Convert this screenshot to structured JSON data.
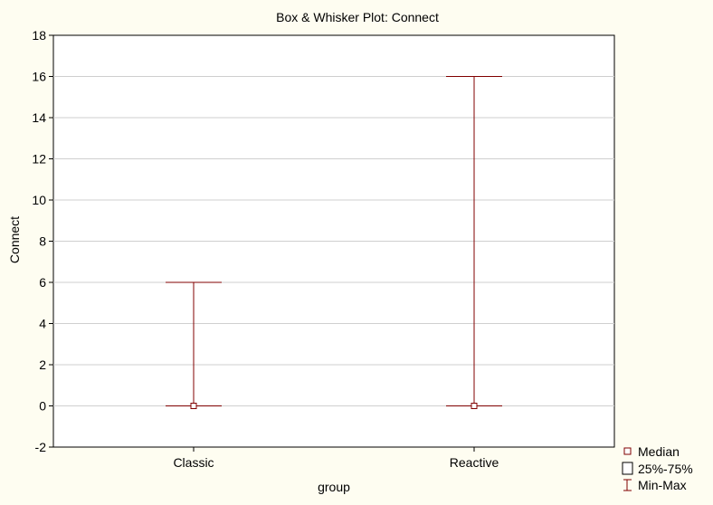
{
  "chart_data": {
    "type": "box",
    "title": "Box & Whisker Plot:  Connect",
    "xlabel": "group",
    "ylabel": "Connect",
    "ylim": [
      -2,
      18
    ],
    "yticks": [
      -2,
      0,
      2,
      4,
      6,
      8,
      10,
      12,
      14,
      16,
      18
    ],
    "grid": true,
    "legend_position": "bottom-right, outside plot",
    "categories": [
      "Classic",
      "Reactive"
    ],
    "series": [
      {
        "category": "Classic",
        "median": 0,
        "q1": 0,
        "q3": 0,
        "min": 0,
        "max": 6
      },
      {
        "category": "Reactive",
        "median": 0,
        "q1": 0,
        "q3": 0,
        "min": 0,
        "max": 16
      }
    ],
    "legend": [
      {
        "label": "Median",
        "icon": "small-square-icon"
      },
      {
        "label": "25%-75%",
        "icon": "box-icon"
      },
      {
        "label": "Min-Max",
        "icon": "whisker-icon"
      }
    ],
    "colors": {
      "mark": "#800000",
      "grid": "#cfcfcf",
      "background": "#fefdf1",
      "plot_background": "#ffffff"
    }
  }
}
